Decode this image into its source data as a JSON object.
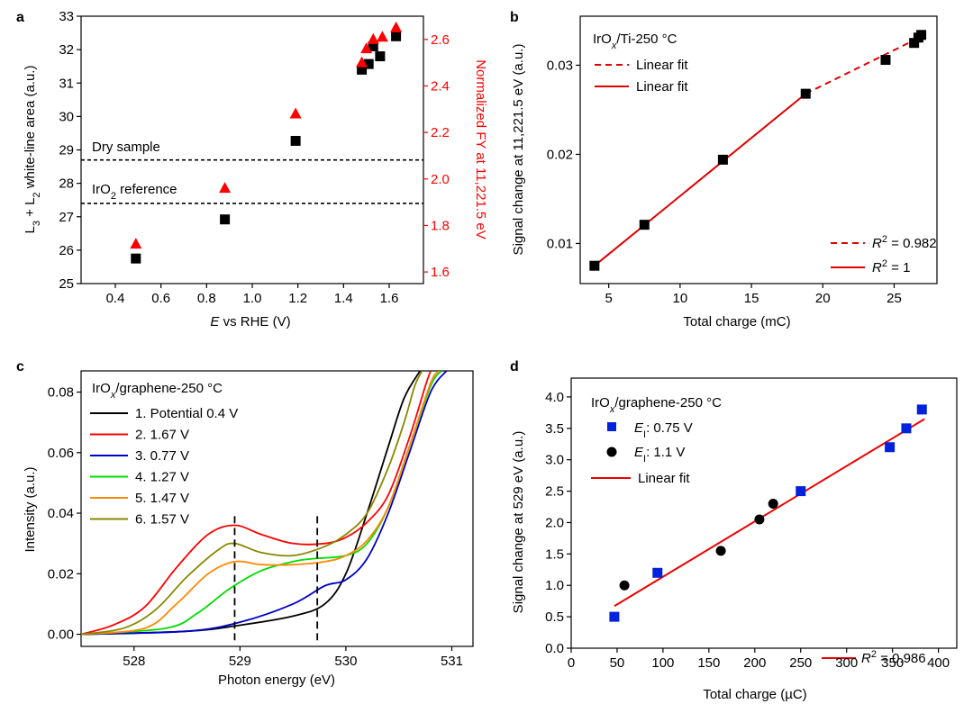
{
  "chart_data": [
    {
      "panel": "a",
      "type": "scatter",
      "xlabel_italic": "E",
      "xlabel_rest": " vs RHE (V)",
      "ylabel": "L3 + L2 white-line area (a.u.)",
      "ylabel_parts": [
        "L",
        "3",
        " + L",
        "2",
        " white-line area (a.u.)"
      ],
      "y2label": "Normalized FY at 11,221.5 eV",
      "xlim": [
        0.25,
        1.75
      ],
      "ylim": [
        25,
        33
      ],
      "y2lim": [
        1.55,
        2.7
      ],
      "xticks": [
        0.4,
        0.6,
        0.8,
        1.0,
        1.2,
        1.4,
        1.6
      ],
      "xtick_labels": [
        "0.4",
        "0.6",
        "0.8",
        "1.0",
        "1.2",
        "1.4",
        "1.6"
      ],
      "yticks": [
        25,
        26,
        27,
        28,
        29,
        30,
        31,
        32,
        33
      ],
      "ytick_labels": [
        "25",
        "26",
        "27",
        "28",
        "29",
        "30",
        "31",
        "32",
        "33"
      ],
      "y2ticks": [
        1.6,
        1.8,
        2.0,
        2.2,
        2.4,
        2.6
      ],
      "y2tick_labels": [
        "1.6",
        "1.8",
        "2.0",
        "2.2",
        "2.4",
        "2.6"
      ],
      "ref_lines": [
        {
          "name": "Dry sample",
          "y": 28.7
        },
        {
          "name": "IrO2 reference",
          "y": 27.4,
          "parts": [
            "IrO",
            "2",
            " reference"
          ]
        }
      ],
      "series": [
        {
          "name": "White-line area",
          "axis": "left",
          "marker": "square",
          "color": "#000000",
          "x": [
            0.49,
            0.88,
            1.19,
            1.48,
            1.51,
            1.53,
            1.56,
            1.63
          ],
          "y": [
            25.75,
            26.92,
            29.27,
            31.4,
            31.57,
            32.1,
            31.8,
            32.4
          ]
        },
        {
          "name": "Normalized FY",
          "axis": "right",
          "marker": "triangle",
          "color": "#ff0000",
          "x": [
            0.49,
            0.88,
            1.19,
            1.48,
            1.5,
            1.53,
            1.57,
            1.63
          ],
          "y": [
            1.72,
            1.96,
            2.28,
            2.5,
            2.56,
            2.6,
            2.61,
            2.65
          ]
        }
      ]
    },
    {
      "panel": "b",
      "type": "scatter",
      "xlabel": "Total charge (mC)",
      "ylabel": "Signal change at 11,221.5 eV (a.u.)",
      "xlim": [
        3,
        28
      ],
      "ylim": [
        0.0055,
        0.0355
      ],
      "xticks": [
        5,
        10,
        15,
        20,
        25
      ],
      "xtick_labels": [
        "5",
        "10",
        "15",
        "20",
        "25"
      ],
      "yticks": [
        0.01,
        0.02,
        0.03
      ],
      "ytick_labels": [
        "0.01",
        "0.02",
        "0.03"
      ],
      "sample": "IrOx/Ti-250 °C",
      "sample_parts": [
        "IrO",
        "x",
        "/Ti-250 °C"
      ],
      "legend": [
        {
          "style": "dashed",
          "label": "Linear fit"
        },
        {
          "style": "solid",
          "label": "Linear fit"
        }
      ],
      "r2": [
        {
          "style": "dashed",
          "prefix": "R",
          "sup": "2",
          "value": " = 0.982"
        },
        {
          "style": "solid",
          "prefix": "R",
          "sup": "2",
          "value": " = 1"
        }
      ],
      "points": {
        "x": [
          4.0,
          7.5,
          13.0,
          18.8,
          24.4,
          26.4,
          26.7,
          26.9
        ],
        "y": [
          0.0075,
          0.0121,
          0.0194,
          0.0268,
          0.0306,
          0.0325,
          0.0331,
          0.0334
        ]
      },
      "fit_solid": {
        "x": [
          4.0,
          18.8
        ],
        "y": [
          0.0075,
          0.0268
        ]
      },
      "fit_dashed": {
        "x": [
          18.8,
          26.9
        ],
        "y": [
          0.0268,
          0.0332
        ]
      }
    },
    {
      "panel": "c",
      "type": "line",
      "xlabel": "Photon energy (eV)",
      "ylabel": "Intensity (a.u.)",
      "xlim": [
        527.5,
        531.2
      ],
      "ylim": [
        -0.004,
        0.087
      ],
      "xticks": [
        528,
        529,
        530,
        531
      ],
      "xtick_labels": [
        "528",
        "529",
        "530",
        "531"
      ],
      "yticks": [
        0.0,
        0.02,
        0.04,
        0.06,
        0.08
      ],
      "ytick_labels": [
        "0.00",
        "0.02",
        "0.04",
        "0.06",
        "0.08"
      ],
      "sample": "IrOx/graphene-250 °C",
      "sample_parts": [
        "IrO",
        "x",
        "/graphene-250 °C"
      ],
      "markers_x": [
        528.95,
        529.73
      ],
      "series": [
        {
          "name": "1. Potential 0.4 V",
          "color": "#000000",
          "x": [
            527.5,
            528.5,
            529.0,
            529.5,
            529.8,
            530.0,
            530.2,
            530.4,
            530.55,
            530.7
          ],
          "y": [
            0.0,
            0.001,
            0.003,
            0.006,
            0.01,
            0.02,
            0.04,
            0.062,
            0.078,
            0.087
          ]
        },
        {
          "name": "2. 1.67 V",
          "color": "#ff0000",
          "x": [
            527.5,
            527.8,
            528.1,
            528.4,
            528.7,
            528.95,
            529.2,
            529.5,
            529.8,
            530.0,
            530.2,
            530.4,
            530.6,
            530.75,
            530.8
          ],
          "y": [
            0.0,
            0.003,
            0.009,
            0.022,
            0.033,
            0.036,
            0.033,
            0.03,
            0.03,
            0.032,
            0.037,
            0.046,
            0.065,
            0.082,
            0.087
          ]
        },
        {
          "name": "3. 0.77 V",
          "color": "#0000cc",
          "x": [
            527.5,
            528.5,
            529.0,
            529.5,
            529.8,
            530.0,
            530.2,
            530.4,
            530.6,
            530.8,
            530.95
          ],
          "y": [
            0.0,
            0.001,
            0.004,
            0.01,
            0.016,
            0.018,
            0.025,
            0.04,
            0.06,
            0.08,
            0.087
          ]
        },
        {
          "name": "4. 1.27 V",
          "color": "#00dd00",
          "x": [
            527.5,
            528.3,
            528.6,
            528.9,
            529.2,
            529.5,
            529.7,
            530.0,
            530.2,
            530.4,
            530.6,
            530.8,
            530.9
          ],
          "y": [
            0.0,
            0.002,
            0.007,
            0.015,
            0.021,
            0.024,
            0.025,
            0.026,
            0.03,
            0.042,
            0.062,
            0.082,
            0.087
          ]
        },
        {
          "name": "5. 1.47 V",
          "color": "#ff8800",
          "x": [
            527.5,
            528.1,
            528.4,
            528.7,
            528.95,
            529.2,
            529.5,
            529.8,
            530.0,
            530.2,
            530.4,
            530.6,
            530.8,
            530.88
          ],
          "y": [
            0.0,
            0.002,
            0.01,
            0.02,
            0.024,
            0.023,
            0.023,
            0.024,
            0.026,
            0.031,
            0.042,
            0.062,
            0.083,
            0.087
          ]
        },
        {
          "name": "6. 1.57 V",
          "color": "#888800",
          "x": [
            527.5,
            527.9,
            528.2,
            528.5,
            528.8,
            528.95,
            529.2,
            529.5,
            529.8,
            530.0,
            530.2,
            530.4,
            530.55,
            530.65,
            530.72
          ],
          "y": [
            0.0,
            0.002,
            0.008,
            0.019,
            0.028,
            0.03,
            0.027,
            0.026,
            0.029,
            0.033,
            0.04,
            0.055,
            0.07,
            0.082,
            0.087
          ]
        }
      ]
    },
    {
      "panel": "d",
      "type": "scatter",
      "xlabel": "Total charge (µC)",
      "ylabel": "Signal change at 529 eV (a.u.)",
      "xlim": [
        0,
        420
      ],
      "ylim": [
        0.0,
        4.3
      ],
      "xticks": [
        0,
        50,
        100,
        150,
        200,
        250,
        300,
        350,
        400
      ],
      "xtick_labels": [
        "0",
        "50",
        "100",
        "150",
        "200",
        "250",
        "300",
        "350",
        "400"
      ],
      "yticks": [
        0.0,
        0.5,
        1.0,
        1.5,
        2.0,
        2.5,
        3.0,
        3.5,
        4.0
      ],
      "ytick_labels": [
        "0.0",
        "0.5",
        "1.0",
        "1.5",
        "2.0",
        "2.5",
        "3.0",
        "3.5",
        "4.0"
      ],
      "sample": "IrOx/graphene-250 °C",
      "sample_parts": [
        "IrO",
        "x",
        "/graphene-250 °C"
      ],
      "legend": [
        {
          "marker": "square",
          "color": "#0022dd",
          "italic": "E",
          "sub": "I",
          "rest": ": 0.75 V"
        },
        {
          "marker": "circle",
          "color": "#000000",
          "italic": "E",
          "sub": "I",
          "rest": ": 1.1 V"
        },
        {
          "marker": "line",
          "color": "#ee0000",
          "label": "Linear fit"
        }
      ],
      "r2": {
        "prefix": "R",
        "sup": "2",
        "value": " = 0.986"
      },
      "series": [
        {
          "name": "EI: 0.75 V",
          "marker": "square",
          "color": "#0022dd",
          "x": [
            47,
            94,
            250,
            347,
            365,
            382
          ],
          "y": [
            0.5,
            1.2,
            2.5,
            3.2,
            3.5,
            3.8
          ]
        },
        {
          "name": "EI: 1.1 V",
          "marker": "circle",
          "color": "#000000",
          "x": [
            58,
            163,
            205,
            220
          ],
          "y": [
            1.0,
            1.55,
            2.05,
            2.3
          ]
        }
      ],
      "fit": {
        "x": [
          47,
          385
        ],
        "y": [
          0.67,
          3.65
        ]
      }
    }
  ]
}
